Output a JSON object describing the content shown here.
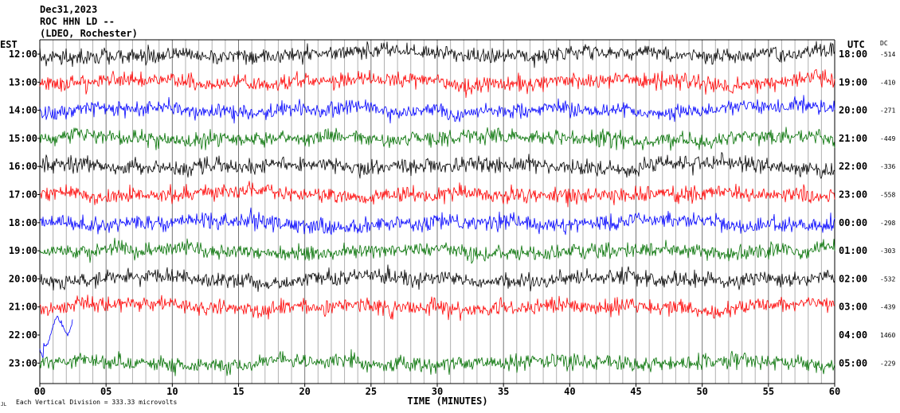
{
  "header": {
    "date": "Dec31,2023",
    "station": "ROC HHN LD --",
    "network": "(LDEO, Rochester)"
  },
  "left_axis_label": "EST",
  "right_axis_label": "UTC",
  "dc_label": "DC",
  "footer": {
    "xlabel": "TIME (MINUTES)",
    "scale_note": "Each Vertical Division =  333.33 microvolts",
    "mark": "JL"
  },
  "chart_data": {
    "type": "line",
    "xlabel": "TIME (MINUTES)",
    "xlim": [
      0,
      60
    ],
    "xticks": [
      "00",
      "05",
      "10",
      "15",
      "20",
      "25",
      "30",
      "35",
      "40",
      "45",
      "50",
      "55",
      "60"
    ],
    "grid": "vertical lines every minute",
    "colors": {
      "black": "#000000",
      "red": "#ff0000",
      "blue": "#0000ff",
      "green": "#007000"
    },
    "rows": [
      {
        "est": "12:00",
        "utc": "18:00",
        "dc": "-514",
        "color": "black",
        "end_min": 60
      },
      {
        "est": "13:00",
        "utc": "19:00",
        "dc": "-410",
        "color": "red",
        "end_min": 60
      },
      {
        "est": "14:00",
        "utc": "20:00",
        "dc": "-271",
        "color": "blue",
        "end_min": 60
      },
      {
        "est": "15:00",
        "utc": "21:00",
        "dc": "-449",
        "color": "green",
        "end_min": 60
      },
      {
        "est": "16:00",
        "utc": "22:00",
        "dc": "-336",
        "color": "black",
        "end_min": 60
      },
      {
        "est": "17:00",
        "utc": "23:00",
        "dc": "-558",
        "color": "red",
        "end_min": 60
      },
      {
        "est": "18:00",
        "utc": "00:00",
        "dc": "-298",
        "color": "blue",
        "end_min": 60
      },
      {
        "est": "19:00",
        "utc": "01:00",
        "dc": "-303",
        "color": "green",
        "end_min": 60
      },
      {
        "est": "20:00",
        "utc": "02:00",
        "dc": "-532",
        "color": "black",
        "end_min": 60
      },
      {
        "est": "21:00",
        "utc": "03:00",
        "dc": "-439",
        "color": "red",
        "end_min": 60
      },
      {
        "est": "22:00",
        "utc": "04:00",
        "dc": "1460",
        "color": "blue",
        "end_min": 2.5
      },
      {
        "est": "23:00",
        "utc": "05:00",
        "dc": "-229",
        "color": "green",
        "end_min": 60
      }
    ]
  }
}
